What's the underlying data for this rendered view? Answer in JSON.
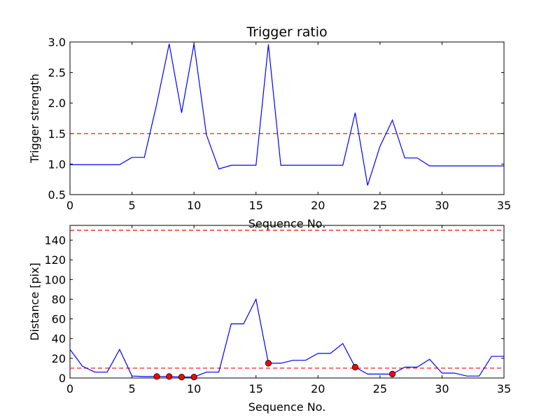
{
  "chart_data": [
    {
      "type": "line",
      "title": "Trigger ratio",
      "xlabel": "Sequence No.",
      "ylabel": "Trigger strength",
      "xlim": [
        0,
        35
      ],
      "ylim": [
        0.5,
        3.0
      ],
      "xticks": [
        0,
        5,
        10,
        15,
        20,
        25,
        30,
        35
      ],
      "yticks": [
        0.5,
        1.0,
        1.5,
        2.0,
        2.5,
        3.0
      ],
      "ytick_labels": [
        "0.5",
        "1.0",
        "1.5",
        "2.0",
        "2.5",
        "3.0"
      ],
      "threshold_lines": [
        1.5
      ],
      "line_color": "#0000ff",
      "threshold_color": "#ff0000",
      "series": [
        {
          "x": [
            0,
            1,
            2,
            3,
            4,
            5,
            6,
            7,
            8,
            9,
            10,
            11,
            12,
            13,
            14,
            15,
            16,
            17,
            18,
            19,
            20,
            21,
            22,
            23,
            24,
            25,
            26,
            27,
            28,
            29,
            30,
            31,
            32,
            33,
            34,
            35
          ],
          "values": [
            0.99,
            0.99,
            0.99,
            0.99,
            0.99,
            1.11,
            1.11,
            1.99,
            2.97,
            1.84,
            2.97,
            1.48,
            0.92,
            0.98,
            0.98,
            0.98,
            2.96,
            0.98,
            0.98,
            0.98,
            0.98,
            0.98,
            0.98,
            1.84,
            0.65,
            1.29,
            1.72,
            1.1,
            1.1,
            0.97,
            0.97,
            0.97,
            0.97,
            0.97,
            0.97,
            0.97
          ]
        }
      ]
    },
    {
      "type": "line",
      "title": "",
      "xlabel": "Sequence No.",
      "ylabel": "Distance [pix]",
      "xlim": [
        0,
        35
      ],
      "ylim": [
        0,
        155
      ],
      "xticks": [
        0,
        5,
        10,
        15,
        20,
        25,
        30,
        35
      ],
      "yticks": [
        0,
        20,
        40,
        60,
        80,
        100,
        120,
        140
      ],
      "threshold_lines": [
        10,
        150
      ],
      "line_color": "#0000ff",
      "threshold_color": "#ff0000",
      "marker_color": "#ff0000",
      "series": [
        {
          "x": [
            0,
            1,
            2,
            3,
            4,
            5,
            6,
            7,
            8,
            9,
            10,
            11,
            12,
            13,
            14,
            15,
            16,
            17,
            18,
            19,
            20,
            21,
            22,
            23,
            24,
            25,
            26,
            27,
            28,
            29,
            30,
            31,
            32,
            33,
            34,
            35
          ],
          "values": [
            29,
            12,
            6,
            6,
            29,
            2,
            1.5,
            1.5,
            1.5,
            1,
            1,
            6,
            6,
            55,
            55,
            80,
            15,
            15,
            18,
            18,
            25,
            25,
            35,
            11,
            4,
            4,
            4,
            11,
            11,
            19,
            5,
            5,
            2,
            2,
            22,
            22
          ]
        }
      ],
      "markers": {
        "x": [
          7,
          8,
          9,
          10,
          16,
          23,
          26
        ],
        "values": [
          1.5,
          1.5,
          1,
          1,
          15,
          11,
          4
        ]
      }
    }
  ]
}
